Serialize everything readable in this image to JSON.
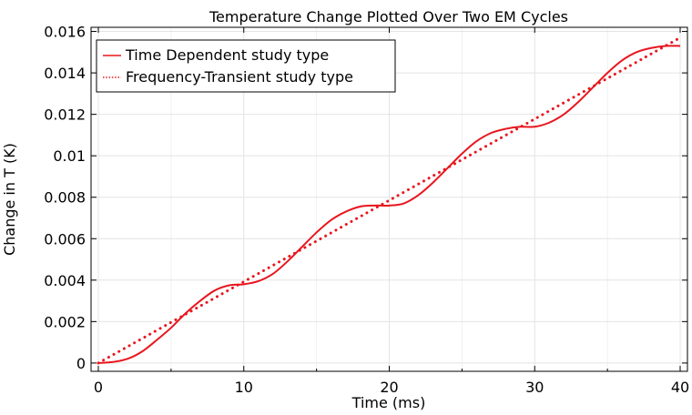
{
  "chart_data": {
    "type": "line",
    "title": "Temperature Change Plotted Over Two EM Cycles",
    "xlabel": "Time (ms)",
    "ylabel": "Change in T (K)",
    "xlim": [
      -0.5,
      40.5
    ],
    "ylim": [
      -0.0004,
      0.0162
    ],
    "xticks": [
      0,
      10,
      20,
      30,
      40
    ],
    "xtick_labels": [
      "0",
      "10",
      "20",
      "30",
      "40"
    ],
    "yticks": [
      0,
      0.002,
      0.004,
      0.006,
      0.008,
      0.01,
      0.012,
      0.014,
      0.016
    ],
    "ytick_labels": [
      "0",
      "0.002",
      "0.004",
      "0.006",
      "0.008",
      "0.01",
      "0.012",
      "0.014",
      "0.016"
    ],
    "grid": true,
    "legend_position": "top-left",
    "series": [
      {
        "name": "Time Dependent study type",
        "style": "solid",
        "color": "#e8161e",
        "x": [
          0,
          1,
          2,
          3,
          4,
          5,
          6,
          7,
          8,
          9,
          10,
          11,
          12,
          13,
          14,
          15,
          16,
          17,
          18,
          19,
          20,
          21,
          22,
          23,
          24,
          25,
          26,
          27,
          28,
          29,
          30,
          31,
          32,
          33,
          34,
          35,
          36,
          37,
          38,
          39,
          40
        ],
        "y": [
          0,
          5e-05,
          0.0002,
          0.00055,
          0.0011,
          0.0017,
          0.0024,
          0.003,
          0.0035,
          0.00375,
          0.0038,
          0.00395,
          0.0043,
          0.0049,
          0.0056,
          0.0063,
          0.0069,
          0.0073,
          0.00755,
          0.0076,
          0.0076,
          0.0077,
          0.0081,
          0.0087,
          0.0094,
          0.0101,
          0.0107,
          0.0111,
          0.0113,
          0.0114,
          0.0114,
          0.0116,
          0.012,
          0.0126,
          0.0133,
          0.014,
          0.0146,
          0.015,
          0.0152,
          0.0153,
          0.0153
        ]
      },
      {
        "name": "Frequency-Transient study type",
        "style": "dotted",
        "color": "#e8161e",
        "x": [
          0,
          40
        ],
        "y": [
          0,
          0.0157
        ]
      }
    ]
  }
}
